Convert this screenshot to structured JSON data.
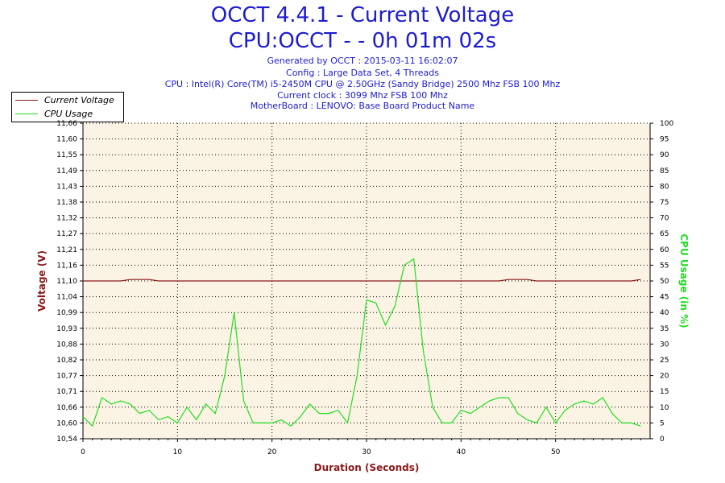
{
  "header": {
    "title_line1": "OCCT 4.4.1 - Current Voltage",
    "title_line2": "CPU:OCCT -  - 0h 01m 02s",
    "info": [
      "Generated by OCCT : 2015-03-11 16:02:07",
      "Config : Large Data Set, 4 Threads",
      "CPU : Intel(R) Core(TM) i5-2450M CPU @ 2.50GHz (Sandy Bridge) 2500 Mhz FSB 100 Mhz",
      "Current clock : 3099 Mhz FSB 100 Mhz",
      "MotherBoard : LENOVO: Base Board Product Name"
    ]
  },
  "legend": {
    "voltage": "Current Voltage",
    "cpu": "CPU Usage"
  },
  "colors": {
    "voltage": "#8b1a1a",
    "cpu": "#22dd22",
    "plot_bg": "#fbf4e4",
    "title": "#1c1ccf",
    "axis_label": "#8b1a1a"
  },
  "chart_data": {
    "type": "line",
    "xlabel": "Duration (Seconds)",
    "ylabel_left": "Voltage (V)",
    "ylabel_right": "CPU Usage (in %)",
    "xlim": [
      0,
      60
    ],
    "x_ticks": [
      0,
      10,
      20,
      30,
      40,
      50
    ],
    "left_ylim": [
      10.54,
      11.66
    ],
    "left_ticks": [
      "10,54",
      "10,60",
      "10,66",
      "10,71",
      "10,77",
      "10,82",
      "10,88",
      "10,93",
      "10,99",
      "11,04",
      "11,10",
      "11,16",
      "11,21",
      "11,27",
      "11,32",
      "11,38",
      "11,43",
      "11,49",
      "11,55",
      "11,60",
      "11,66"
    ],
    "right_ylim": [
      0,
      100
    ],
    "right_ticks": [
      0,
      5,
      10,
      15,
      20,
      25,
      30,
      35,
      40,
      45,
      50,
      55,
      60,
      65,
      70,
      75,
      80,
      85,
      90,
      95,
      100
    ],
    "grid": true,
    "legend_position": "top-left",
    "series": [
      {
        "name": "Current Voltage",
        "axis": "left",
        "x": [
          0,
          1,
          2,
          3,
          4,
          5,
          6,
          7,
          8,
          9,
          10,
          11,
          12,
          13,
          14,
          15,
          16,
          17,
          18,
          19,
          20,
          21,
          22,
          23,
          24,
          25,
          26,
          27,
          28,
          29,
          30,
          31,
          32,
          33,
          34,
          35,
          36,
          37,
          38,
          39,
          40,
          41,
          42,
          43,
          44,
          45,
          46,
          47,
          48,
          49,
          50,
          51,
          52,
          53,
          54,
          55,
          56,
          57,
          58,
          59
        ],
        "values": [
          11.1,
          11.1,
          11.1,
          11.1,
          11.1,
          11.105,
          11.105,
          11.105,
          11.1,
          11.1,
          11.1,
          11.1,
          11.1,
          11.1,
          11.1,
          11.1,
          11.1,
          11.1,
          11.1,
          11.1,
          11.1,
          11.1,
          11.1,
          11.1,
          11.1,
          11.1,
          11.1,
          11.1,
          11.1,
          11.1,
          11.1,
          11.1,
          11.1,
          11.1,
          11.1,
          11.1,
          11.1,
          11.1,
          11.1,
          11.1,
          11.1,
          11.1,
          11.1,
          11.1,
          11.1,
          11.105,
          11.105,
          11.105,
          11.1,
          11.1,
          11.1,
          11.1,
          11.1,
          11.1,
          11.1,
          11.1,
          11.1,
          11.1,
          11.1,
          11.105
        ]
      },
      {
        "name": "CPU Usage",
        "axis": "right",
        "x": [
          0,
          1,
          2,
          3,
          4,
          5,
          6,
          7,
          8,
          9,
          10,
          11,
          12,
          13,
          14,
          15,
          16,
          17,
          18,
          19,
          20,
          21,
          22,
          23,
          24,
          25,
          26,
          27,
          28,
          29,
          30,
          31,
          32,
          33,
          34,
          35,
          36,
          37,
          38,
          39,
          40,
          41,
          42,
          43,
          44,
          45,
          46,
          47,
          48,
          49,
          50,
          51,
          52,
          53,
          54,
          55,
          56,
          57,
          58,
          59
        ],
        "values": [
          7,
          4,
          13,
          11,
          12,
          11,
          8,
          9,
          6,
          7,
          5,
          10,
          6,
          11,
          8,
          20,
          40,
          12,
          5,
          5,
          5,
          6,
          4,
          7,
          11,
          8,
          8,
          9,
          5,
          20,
          44,
          43,
          36,
          42,
          55,
          57,
          28,
          10,
          5,
          5,
          9,
          8,
          10,
          12,
          13,
          13,
          8,
          6,
          5,
          10,
          5,
          9,
          11,
          12,
          11,
          13,
          8,
          5,
          5,
          4
        ]
      }
    ]
  }
}
